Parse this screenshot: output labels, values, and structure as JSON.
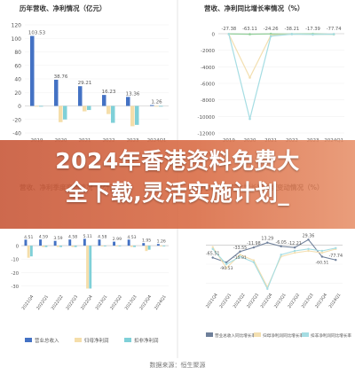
{
  "headline": {
    "line1": "2024年香港资料免费大",
    "line2": "全下载,灵活实施计划_"
  },
  "source": "数据来源：恒生聚源",
  "colors": {
    "revenue": "#4472c4",
    "profit": "#f5deaa",
    "nonrecurring": "#7fd0d8",
    "line_green": "#92cf9a",
    "line_rev": "#6e7f9a",
    "line_profit": "#f3dfb0",
    "line_nr": "#a5dde3",
    "axis": "#bbbbbb",
    "text": "#555555",
    "title": "#333333",
    "banner": "#d26a48"
  },
  "chart_data": [
    {
      "type": "bar",
      "title": "历年营收、净利情况（亿元）",
      "categories": [
        "2019",
        "2020",
        "2021",
        "2022",
        "2023",
        "2024Q1"
      ],
      "ylim": [
        -40,
        120
      ],
      "yticks": [
        120,
        100,
        80,
        60,
        40,
        20,
        0,
        -20,
        -40
      ],
      "series": [
        {
          "values": [
            103.53,
            38.76,
            29.21,
            16.23,
            13.36,
            1.26
          ],
          "labels": [
            "103.53",
            "38.76",
            "29.21",
            "16.23",
            "13.36",
            "1.26"
          ]
        },
        {
          "values": [
            -1,
            -24,
            -8,
            -12,
            -30,
            -1
          ]
        },
        {
          "values": [
            0,
            -20,
            -6,
            -25,
            -28,
            0
          ]
        }
      ]
    },
    {
      "type": "line",
      "title": "营收、净利同比增长率情况（%）",
      "categories": [
        "2019",
        "2020",
        "2021",
        "2022",
        "2023",
        "2024Q1"
      ],
      "ylim": [
        -12000,
        0
      ],
      "yticks": [
        0,
        -2000,
        -4000,
        -6000,
        -8000,
        -10000,
        -12000
      ],
      "top_labels": [
        "-27.38",
        "-63.11",
        "-24.26",
        "-38.21",
        "-17.39",
        "-77.74"
      ],
      "series": [
        {
          "values": [
            -27.38,
            -63.11,
            -24.26,
            -38.21,
            -17.39,
            -77.74
          ]
        },
        {
          "values": [
            -50,
            -5300,
            -200,
            -50,
            -100,
            -50
          ]
        },
        {
          "values": [
            -50,
            -10300,
            -300,
            -50,
            -100,
            -50
          ]
        }
      ]
    },
    {
      "type": "bar",
      "title": "营收、净利季度变动情况（亿元）",
      "categories": [
        "2021Q4",
        "2022Q1",
        "2022Q2",
        "2022Q3",
        "2022Q4",
        "2023Q1",
        "2023Q2",
        "2023Q3",
        "2023Q4",
        "2024Q1"
      ],
      "top_labels": [
        "4.51",
        "4.59",
        "3.59",
        "4.58",
        "5.11",
        "4.58",
        "2.99",
        "4.53",
        "1.95",
        "1.26"
      ],
      "ylim": [
        -35,
        10
      ],
      "series": [
        {
          "name": "营业总收入",
          "values": [
            4.51,
            4.59,
            3.59,
            4.58,
            5.11,
            4.58,
            2.99,
            4.53,
            1.95,
            1.26
          ]
        },
        {
          "name": "归母净利润",
          "values": [
            -9,
            -1,
            -1,
            -1,
            -32,
            -0.5,
            -0.5,
            -1,
            -4,
            -0.3
          ]
        },
        {
          "name": "扣非净利润",
          "values": [
            -8,
            -1,
            -1,
            -1,
            -32,
            -0.5,
            -0.5,
            -1,
            -3,
            -0.3
          ]
        }
      ]
    },
    {
      "type": "line",
      "title": "营收、净利同比增长率季度变动情况（%）",
      "categories": [
        "2021Q4",
        "2022Q1",
        "2022Q2",
        "2022Q3",
        "2022Q4",
        "2023Q1",
        "2023Q2",
        "2023Q3",
        "2023Q4",
        "2024Q1"
      ],
      "point_labels": [
        "-65.51",
        "",
        "-33.55",
        "-11.98",
        "13.29",
        "-6.05",
        "-12.21",
        "29.36",
        "",
        "-77.74"
      ],
      "extra_labels": [
        "-60.51",
        "-90.53",
        "-15.91"
      ],
      "series": [
        {
          "name": "营业总收入同比增长率",
          "values": [
            -65.51,
            -90.53,
            -33.55,
            -11.98,
            13.29,
            -6.05,
            -12.21,
            29.36,
            -60.51,
            -77.74
          ]
        },
        {
          "name": "归母净利润同比增长率",
          "values": [
            -10,
            -120,
            -50,
            -80,
            -220,
            -60,
            -40,
            -30,
            -40,
            -20
          ]
        },
        {
          "name": "扣非净利润同比增长率",
          "values": [
            -20,
            -100,
            -60,
            -90,
            -230,
            -50,
            -30,
            -20,
            -30,
            -15
          ]
        }
      ]
    }
  ]
}
